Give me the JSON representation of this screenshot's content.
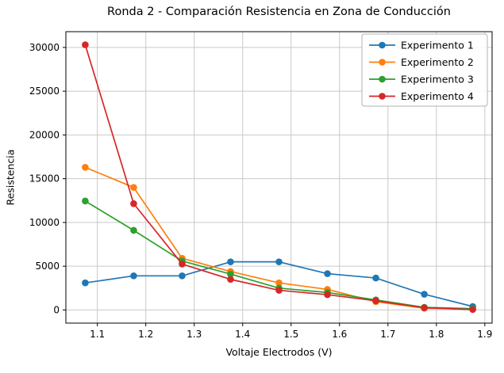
{
  "chart_data": {
    "type": "line",
    "title": "Ronda 2 - Comparación Resistencia en Zona de Conducción",
    "xlabel": "Voltaje Electrodos (V)",
    "ylabel": "Resistencia",
    "x": [
      1.075,
      1.175,
      1.275,
      1.375,
      1.475,
      1.575,
      1.675,
      1.775,
      1.875
    ],
    "series": [
      {
        "name": "Experimento 1",
        "color": "#1f77b4",
        "values": [
          3100,
          3900,
          3900,
          5500,
          5500,
          4150,
          3650,
          1800,
          400
        ]
      },
      {
        "name": "Experimento 2",
        "color": "#ff7f0e",
        "values": [
          16300,
          14000,
          5900,
          4400,
          3100,
          2350,
          950,
          200,
          100
        ]
      },
      {
        "name": "Experimento 3",
        "color": "#2ca02c",
        "values": [
          12450,
          9100,
          5600,
          4100,
          2500,
          2000,
          1150,
          300,
          150
        ]
      },
      {
        "name": "Experimento 4",
        "color": "#d62728",
        "values": [
          30300,
          12150,
          5250,
          3500,
          2250,
          1750,
          1050,
          250,
          50
        ]
      }
    ],
    "xticks": [
      "1.1",
      "1.2",
      "1.3",
      "1.4",
      "1.5",
      "1.6",
      "1.7",
      "1.8",
      "1.9"
    ],
    "xtick_values": [
      1.1,
      1.2,
      1.3,
      1.4,
      1.5,
      1.6,
      1.7,
      1.8,
      1.9
    ],
    "yticks": [
      "0",
      "5000",
      "10000",
      "15000",
      "20000",
      "25000",
      "30000"
    ],
    "ytick_values": [
      0,
      5000,
      10000,
      15000,
      20000,
      25000,
      30000
    ],
    "xlim": [
      1.035,
      1.915
    ],
    "ylim": [
      -1500,
      31800
    ],
    "grid": true,
    "legend_position": "upper right",
    "grid_color": "#c9c9c9",
    "axis_color": "#000000",
    "legend_border_color": "#b3b3b3",
    "legend_bg": "#ffffff"
  }
}
